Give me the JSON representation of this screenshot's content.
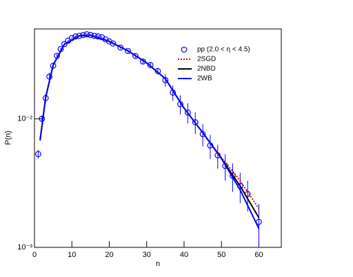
{
  "chart_data": {
    "type": "scatter",
    "x_label": "n",
    "y_label": "P(n)",
    "y_log": true,
    "xlim": [
      0,
      66
    ],
    "xticks": [
      0,
      10,
      20,
      30,
      40,
      50,
      60
    ],
    "ylim": [
      0.001,
      0.05
    ],
    "yticks": [
      {
        "value": 0.01,
        "label": "10⁻²"
      },
      {
        "value": 0.001,
        "label": "10⁻³"
      }
    ],
    "legend": "upper right",
    "series": [
      {
        "name": "pp (2.0 < η < 4.5)",
        "kind": "points",
        "color": "#0000ff",
        "x": [
          1,
          2,
          3,
          4,
          5,
          6,
          7,
          8,
          9,
          10,
          11,
          12,
          13,
          14,
          15,
          16,
          17,
          18,
          19,
          20,
          21,
          23,
          25,
          27,
          29,
          31,
          33,
          35,
          37,
          39,
          41,
          43,
          45,
          47,
          49,
          51,
          53,
          55,
          57,
          60
        ],
        "values": [
          0.00532,
          0.01,
          0.0145,
          0.0213,
          0.0259,
          0.0309,
          0.0349,
          0.0381,
          0.0405,
          0.0425,
          0.0437,
          0.0442,
          0.0448,
          0.0454,
          0.0448,
          0.0442,
          0.0437,
          0.0431,
          0.0415,
          0.04,
          0.0385,
          0.0358,
          0.0337,
          0.0308,
          0.0279,
          0.0262,
          0.0235,
          0.02,
          0.016,
          0.013,
          0.0112,
          0.0094,
          0.0076,
          0.0062,
          0.0052,
          0.0043,
          0.0036,
          0.003,
          0.0026,
          0.00158
        ],
        "errors": [
          0.0004,
          0.0006,
          0.0012,
          0.0015,
          0.0012,
          0.001,
          0.0008,
          0.0008,
          0.0008,
          0.0008,
          0.0008,
          0.0008,
          0.0008,
          0.0008,
          0.0008,
          0.0008,
          0.0008,
          0.0008,
          0.0008,
          0.0008,
          0.0008,
          0.0009,
          0.0009,
          0.001,
          0.0011,
          0.0012,
          0.0014,
          0.0022,
          0.0022,
          0.0022,
          0.002,
          0.0018,
          0.0015,
          0.0013,
          0.0011,
          0.001,
          0.0009,
          0.0008,
          0.0007,
          0.0006
        ]
      },
      {
        "name": "2SGD",
        "kind": "line",
        "style": "dotted",
        "color": "#cc0000",
        "x": [
          1.5,
          3,
          5,
          8,
          12,
          15,
          20,
          25,
          30,
          35,
          40,
          45,
          50,
          55,
          60
        ],
        "values": [
          0.0068,
          0.0147,
          0.0262,
          0.038,
          0.0442,
          0.0445,
          0.04,
          0.0338,
          0.0272,
          0.0205,
          0.0121,
          0.0078,
          0.005,
          0.0033,
          0.002
        ]
      },
      {
        "name": "2NBD",
        "kind": "line",
        "style": "solid",
        "color": "#000000",
        "x": [
          1.5,
          3,
          5,
          8,
          12,
          15,
          20,
          25,
          30,
          35,
          40,
          45,
          50,
          55,
          60
        ],
        "values": [
          0.0068,
          0.0147,
          0.0262,
          0.038,
          0.0442,
          0.0445,
          0.04,
          0.0338,
          0.0272,
          0.0205,
          0.0121,
          0.0078,
          0.0049,
          0.003,
          0.0017
        ]
      },
      {
        "name": "2WB",
        "kind": "line",
        "style": "solid",
        "color": "#0000ff",
        "x": [
          1.5,
          3,
          5,
          8,
          12,
          15,
          20,
          25,
          30,
          35,
          40,
          45,
          50,
          55,
          60
        ],
        "values": [
          0.0068,
          0.0147,
          0.0262,
          0.038,
          0.0442,
          0.0445,
          0.04,
          0.0338,
          0.0272,
          0.0205,
          0.0121,
          0.0078,
          0.0049,
          0.0028,
          0.0014
        ]
      }
    ]
  }
}
